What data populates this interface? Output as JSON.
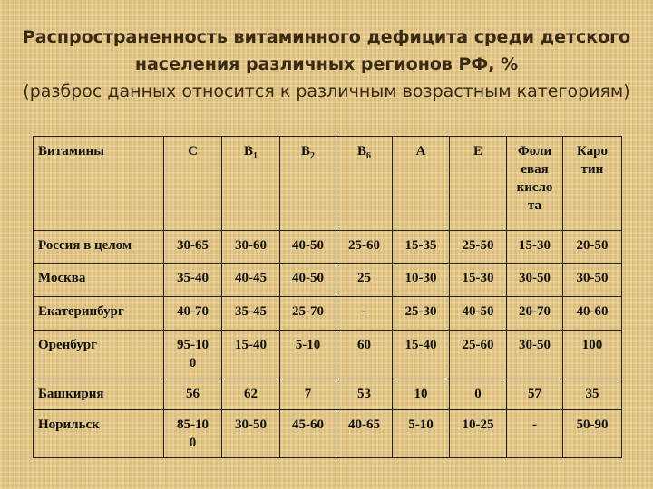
{
  "title": {
    "line1": "Распространенность витаминного дефицита среди детского",
    "line2": "населения различных регионов РФ, %",
    "line3": "(разброс данных относится к различным возрастным категориям)"
  },
  "table": {
    "header": {
      "label": "Витамины",
      "cols": [
        {
          "main": "C",
          "sub": ""
        },
        {
          "main": "B",
          "sub": "1"
        },
        {
          "main": "B",
          "sub": "2"
        },
        {
          "main": "B",
          "sub": "6"
        },
        {
          "main": "A",
          "sub": ""
        },
        {
          "main": "E",
          "sub": ""
        },
        {
          "main": "Фоли евая кисло та",
          "sub": ""
        },
        {
          "main": "Каро тин",
          "sub": ""
        }
      ]
    },
    "rows": [
      {
        "region": "Россия в целом",
        "values": [
          "30-65",
          "30-60",
          "40-50",
          "25-60",
          "15-35",
          "25-50",
          "15-30",
          "20-50"
        ]
      },
      {
        "region": "Москва",
        "values": [
          "35-40",
          "40-45",
          "40-50",
          "25",
          "10-30",
          "15-30",
          "30-50",
          "30-50"
        ]
      },
      {
        "region": "Екатеринбург",
        "values": [
          "40-70",
          "35-45",
          "25-70",
          "-",
          "25-30",
          "40-50",
          "20-70",
          "40-60"
        ]
      },
      {
        "region": "Оренбург",
        "values": [
          "95-100",
          "15-40",
          "5-10",
          "60",
          "15-40",
          "25-60",
          "30-50",
          "100"
        ]
      },
      {
        "region": "Башкирия",
        "values": [
          "56",
          "62",
          "7",
          "53",
          "10",
          "0",
          "57",
          "35"
        ]
      },
      {
        "region": "Норильск",
        "values": [
          "85-100",
          "30-50",
          "45-60",
          "40-65",
          "5-10",
          "10-25",
          "-",
          "50-90"
        ]
      }
    ]
  }
}
